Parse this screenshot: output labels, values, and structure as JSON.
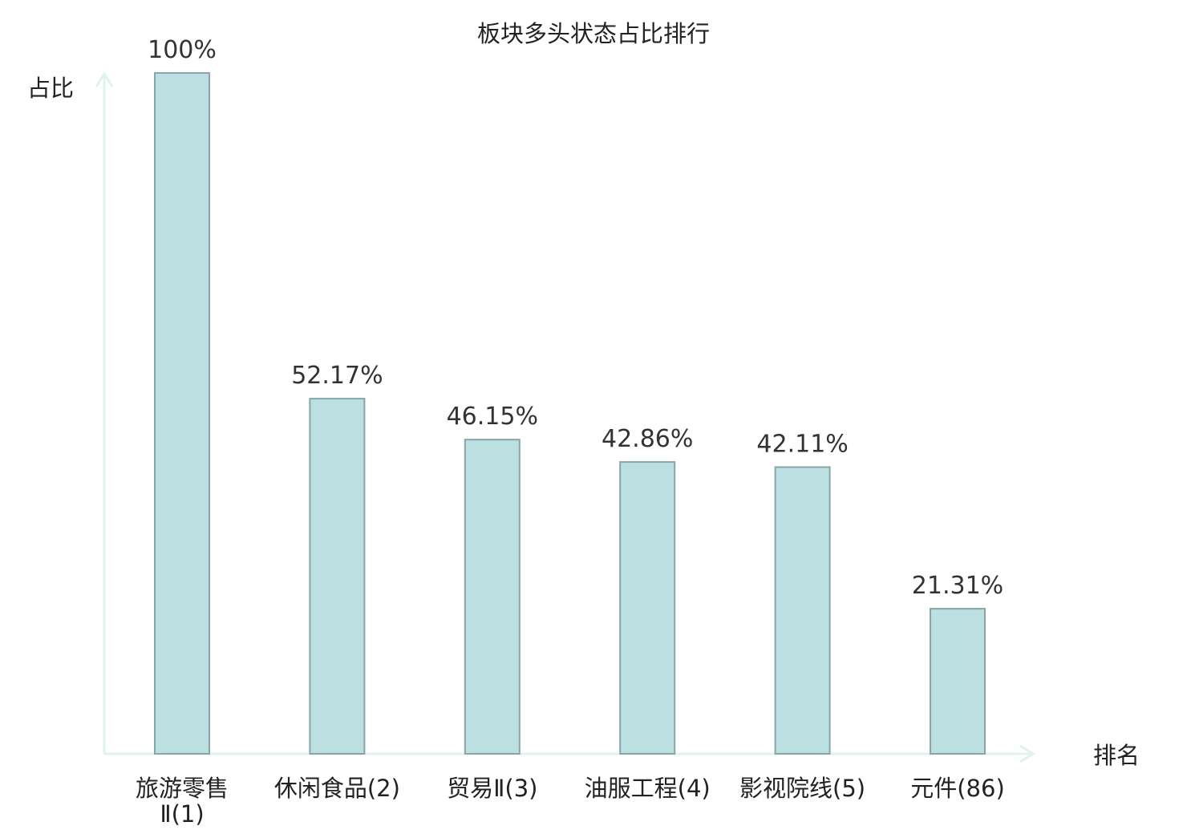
{
  "chart_data": {
    "type": "bar",
    "title": "板块多头状态占比排行",
    "ylabel": "占比",
    "xlabel": "排名",
    "ylim": [
      0,
      100
    ],
    "grid": false,
    "categories": [
      [
        "旅游零售",
        "Ⅱ(1)"
      ],
      [
        "休闲食品(2)"
      ],
      [
        "贸易Ⅱ(3)"
      ],
      [
        "油服工程(4)"
      ],
      [
        "影视院线(5)"
      ],
      [
        "元件(86)"
      ]
    ],
    "values": [
      100,
      52.17,
      46.15,
      42.86,
      42.11,
      21.31
    ],
    "value_labels": [
      "100%",
      "52.17%",
      "46.15%",
      "42.86%",
      "42.11%",
      "21.31%"
    ],
    "highlight_index": 5,
    "colors": {
      "bar_fill": "#bce0e2",
      "bar_stroke": "#88a5a8",
      "axis": "#e0f2f0",
      "highlight_text": "#e0181b",
      "text": "#222222"
    }
  }
}
